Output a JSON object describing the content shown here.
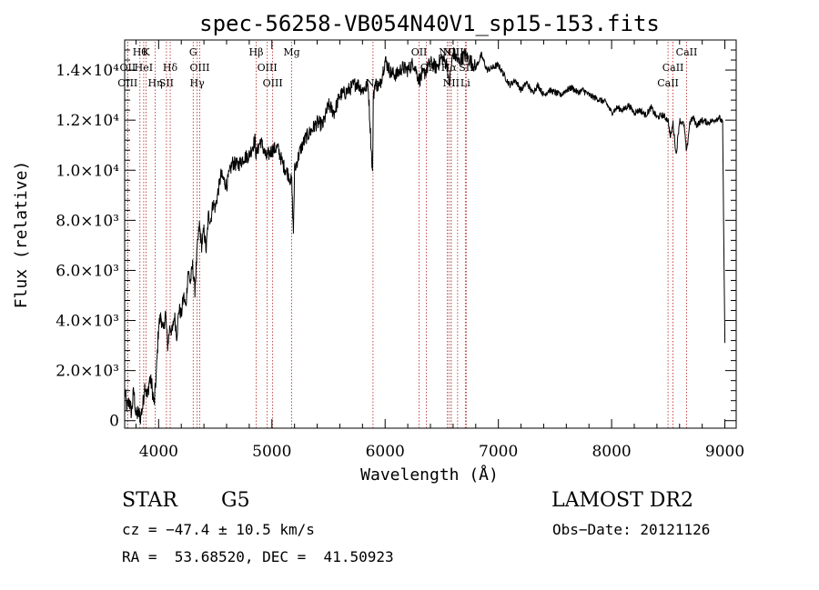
{
  "chart_data": {
    "type": "line",
    "title": "spec-56258-VB054N40V1_sp15-153.fits",
    "xlabel": "Wavelength (Å)",
    "ylabel": "Flux (relative)",
    "xlim": [
      3700,
      9100
    ],
    "ylim": [
      -300,
      15200
    ],
    "xticks": [
      {
        "v": 4000,
        "label": "4000"
      },
      {
        "v": 5000,
        "label": "5000"
      },
      {
        "v": 6000,
        "label": "6000"
      },
      {
        "v": 7000,
        "label": "7000"
      },
      {
        "v": 8000,
        "label": "8000"
      },
      {
        "v": 9000,
        "label": "9000"
      }
    ],
    "yticks": [
      {
        "v": 0,
        "label": "0"
      },
      {
        "v": 2000,
        "label": "2.0×10³"
      },
      {
        "v": 4000,
        "label": "4.0×10³"
      },
      {
        "v": 6000,
        "label": "6.0×10³"
      },
      {
        "v": 8000,
        "label": "8.0×10³"
      },
      {
        "v": 10000,
        "label": "1.0×10⁴"
      },
      {
        "v": 12000,
        "label": "1.2×10⁴"
      },
      {
        "v": 14000,
        "label": "1.4×10⁴"
      }
    ],
    "series": [
      {
        "x": [
          3700,
          3720,
          3740,
          3760,
          3780,
          3800,
          3820,
          3840,
          3860,
          3880,
          3900,
          3920,
          3940,
          3960,
          3980,
          4000,
          4020,
          4040,
          4060,
          4080,
          4100,
          4120,
          4140,
          4160,
          4180,
          4200,
          4220,
          4240,
          4260,
          4280,
          4300,
          4320,
          4340,
          4360,
          4380,
          4400,
          4420,
          4440,
          4460,
          4480,
          4500,
          4550,
          4600,
          4650,
          4700,
          4750,
          4800,
          4850,
          4861,
          4880,
          4900,
          4950,
          5000,
          5050,
          5100,
          5150,
          5175,
          5190,
          5200,
          5250,
          5300,
          5350,
          5400,
          5450,
          5500,
          5550,
          5600,
          5650,
          5700,
          5750,
          5800,
          5850,
          5889,
          5895,
          5910,
          5950,
          6000,
          6050,
          6100,
          6150,
          6200,
          6250,
          6300,
          6350,
          6400,
          6450,
          6500,
          6550,
          6563,
          6580,
          6600,
          6650,
          6700,
          6750,
          6800,
          6850,
          6900,
          6950,
          7000,
          7050,
          7100,
          7150,
          7200,
          7250,
          7300,
          7350,
          7400,
          7450,
          7500,
          7550,
          7600,
          7650,
          7700,
          7750,
          7800,
          7850,
          7900,
          7950,
          8000,
          8050,
          8100,
          8150,
          8200,
          8250,
          8300,
          8350,
          8400,
          8450,
          8498,
          8520,
          8542,
          8570,
          8600,
          8640,
          8662,
          8690,
          8720,
          8750,
          8800,
          8850,
          8900,
          8950,
          8980,
          9000
        ],
        "y": [
          1200,
          500,
          800,
          300,
          1200,
          200,
          300,
          150,
          600,
          1500,
          900,
          1700,
          1400,
          600,
          1900,
          3800,
          4200,
          3500,
          4300,
          3000,
          3800,
          3500,
          4200,
          3400,
          4500,
          4200,
          5000,
          4500,
          6000,
          5500,
          6200,
          5200,
          6800,
          7800,
          7000,
          7600,
          6800,
          8200,
          8000,
          8700,
          8500,
          9800,
          9400,
          10300,
          10200,
          10500,
          10600,
          11200,
          10600,
          10900,
          11200,
          10500,
          10800,
          10900,
          10200,
          9800,
          9500,
          7500,
          10000,
          10800,
          11300,
          11600,
          11900,
          11800,
          12600,
          12300,
          13000,
          13100,
          13300,
          13500,
          13200,
          13400,
          9800,
          12800,
          13500,
          13300,
          14400,
          13900,
          13800,
          14100,
          14000,
          14300,
          13600,
          13900,
          14300,
          14100,
          14500,
          14200,
          13300,
          14000,
          14700,
          14300,
          14600,
          14400,
          14100,
          14600,
          14000,
          14100,
          14200,
          13800,
          13400,
          13600,
          13200,
          13500,
          13100,
          13400,
          13000,
          13200,
          13100,
          13000,
          13200,
          13300,
          13100,
          13200,
          13000,
          12900,
          12800,
          12700,
          12300,
          12500,
          12400,
          12600,
          12300,
          12400,
          12200,
          12500,
          12100,
          12200,
          12000,
          11300,
          11900,
          10600,
          12000,
          11800,
          10700,
          11900,
          12100,
          11800,
          12000,
          11900,
          12000,
          12100,
          11900,
          3100
        ]
      }
    ],
    "line_markers": {
      "marker_color": "#b02020",
      "lines": [
        {
          "wave": 3835,
          "label": "Hθ",
          "row": 0
        },
        {
          "wave": 3889,
          "label": "K",
          "row": 0
        },
        {
          "wave": 4305,
          "label": "G",
          "row": 0
        },
        {
          "wave": 4861,
          "label": "Hβ",
          "row": 0
        },
        {
          "wave": 5175,
          "label": "Mg",
          "row": 0
        },
        {
          "wave": 6300,
          "label": "OII",
          "row": 0
        },
        {
          "wave": 6548,
          "label": "NII",
          "row": 0
        },
        {
          "wave": 6583,
          "label": "NII",
          "row": 0
        },
        {
          "wave": 6640,
          "label": "OIII",
          "row": 0
        },
        {
          "wave": 8662,
          "label": "CaII",
          "row": 0
        },
        {
          "wave": 3727,
          "label": "OII",
          "row": 1
        },
        {
          "wave": 3868,
          "label": "HeI",
          "row": 1
        },
        {
          "wave": 4102,
          "label": "Hδ",
          "row": 1
        },
        {
          "wave": 4363,
          "label": "OIII",
          "row": 1
        },
        {
          "wave": 4959,
          "label": "OIII",
          "row": 1
        },
        {
          "wave": 6363,
          "label": "OI",
          "row": 1
        },
        {
          "wave": 6563,
          "label": "Hα",
          "row": 1
        },
        {
          "wave": 6716,
          "label": "SII",
          "row": 1
        },
        {
          "wave": 8542,
          "label": "CaII",
          "row": 1
        },
        {
          "wave": 3726,
          "label": "OIII",
          "row": 2
        },
        {
          "wave": 3970,
          "label": "Hη",
          "row": 2
        },
        {
          "wave": 4069,
          "label": "SII",
          "row": 2
        },
        {
          "wave": 4340,
          "label": "Hγ",
          "row": 2
        },
        {
          "wave": 5007,
          "label": "OIII",
          "row": 2
        },
        {
          "wave": 5893,
          "label": "Na",
          "row": 2
        },
        {
          "wave": 6583,
          "label": "NII",
          "row": 2
        },
        {
          "wave": 6708,
          "label": "Li",
          "row": 2
        },
        {
          "wave": 8498,
          "label": "CaII",
          "row": 2
        }
      ]
    }
  },
  "info": {
    "class": "STAR",
    "subclass": "G5",
    "survey": "LAMOST DR2",
    "cz": "cz = −47.4 ± 10.5 km/s",
    "obs_date": "Obs−Date: 20121126",
    "coords": "RA =  53.68520, DEC =  41.50923"
  }
}
